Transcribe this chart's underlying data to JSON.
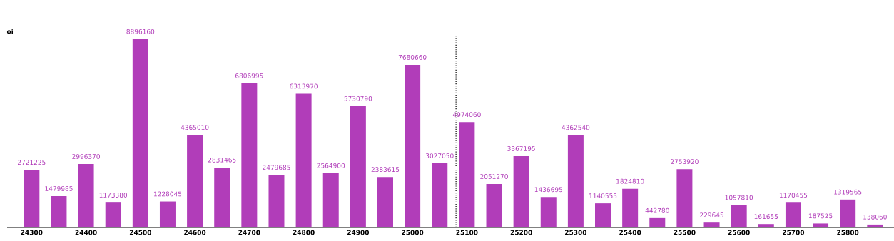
{
  "chart_data": {
    "type": "bar",
    "ylabel": "oi",
    "x": [
      24300,
      24350,
      24400,
      24450,
      24500,
      24550,
      24600,
      24650,
      24700,
      24750,
      24800,
      24850,
      24900,
      24950,
      25000,
      25050,
      25100,
      25150,
      25200,
      25250,
      25300,
      25350,
      25400,
      25450,
      25500,
      25550,
      25600,
      25650,
      25700,
      25750,
      25800,
      25850
    ],
    "values": [
      2721225,
      1479985,
      2996370,
      1173380,
      8896160,
      1228045,
      4365010,
      2831465,
      6806995,
      2479685,
      6313970,
      2564900,
      5730790,
      2383615,
      7680660,
      3027050,
      4974060,
      2051270,
      3367195,
      1436695,
      4362540,
      1140555,
      1824810,
      442780,
      2753920,
      229645,
      1057810,
      161655,
      1170455,
      187525,
      1319565,
      138060
    ],
    "color": "#b13db9",
    "data_labels": true,
    "xlim": [
      24255,
      25885
    ],
    "xticks": [
      24300,
      24400,
      24500,
      24600,
      24700,
      24800,
      24900,
      25000,
      25100,
      25200,
      25300,
      25400,
      25500,
      25600,
      25700,
      25800
    ],
    "ref_lines": [
      {
        "axis": "x",
        "value": 25080,
        "color": "#000000",
        "line_style": "dotted"
      }
    ]
  }
}
